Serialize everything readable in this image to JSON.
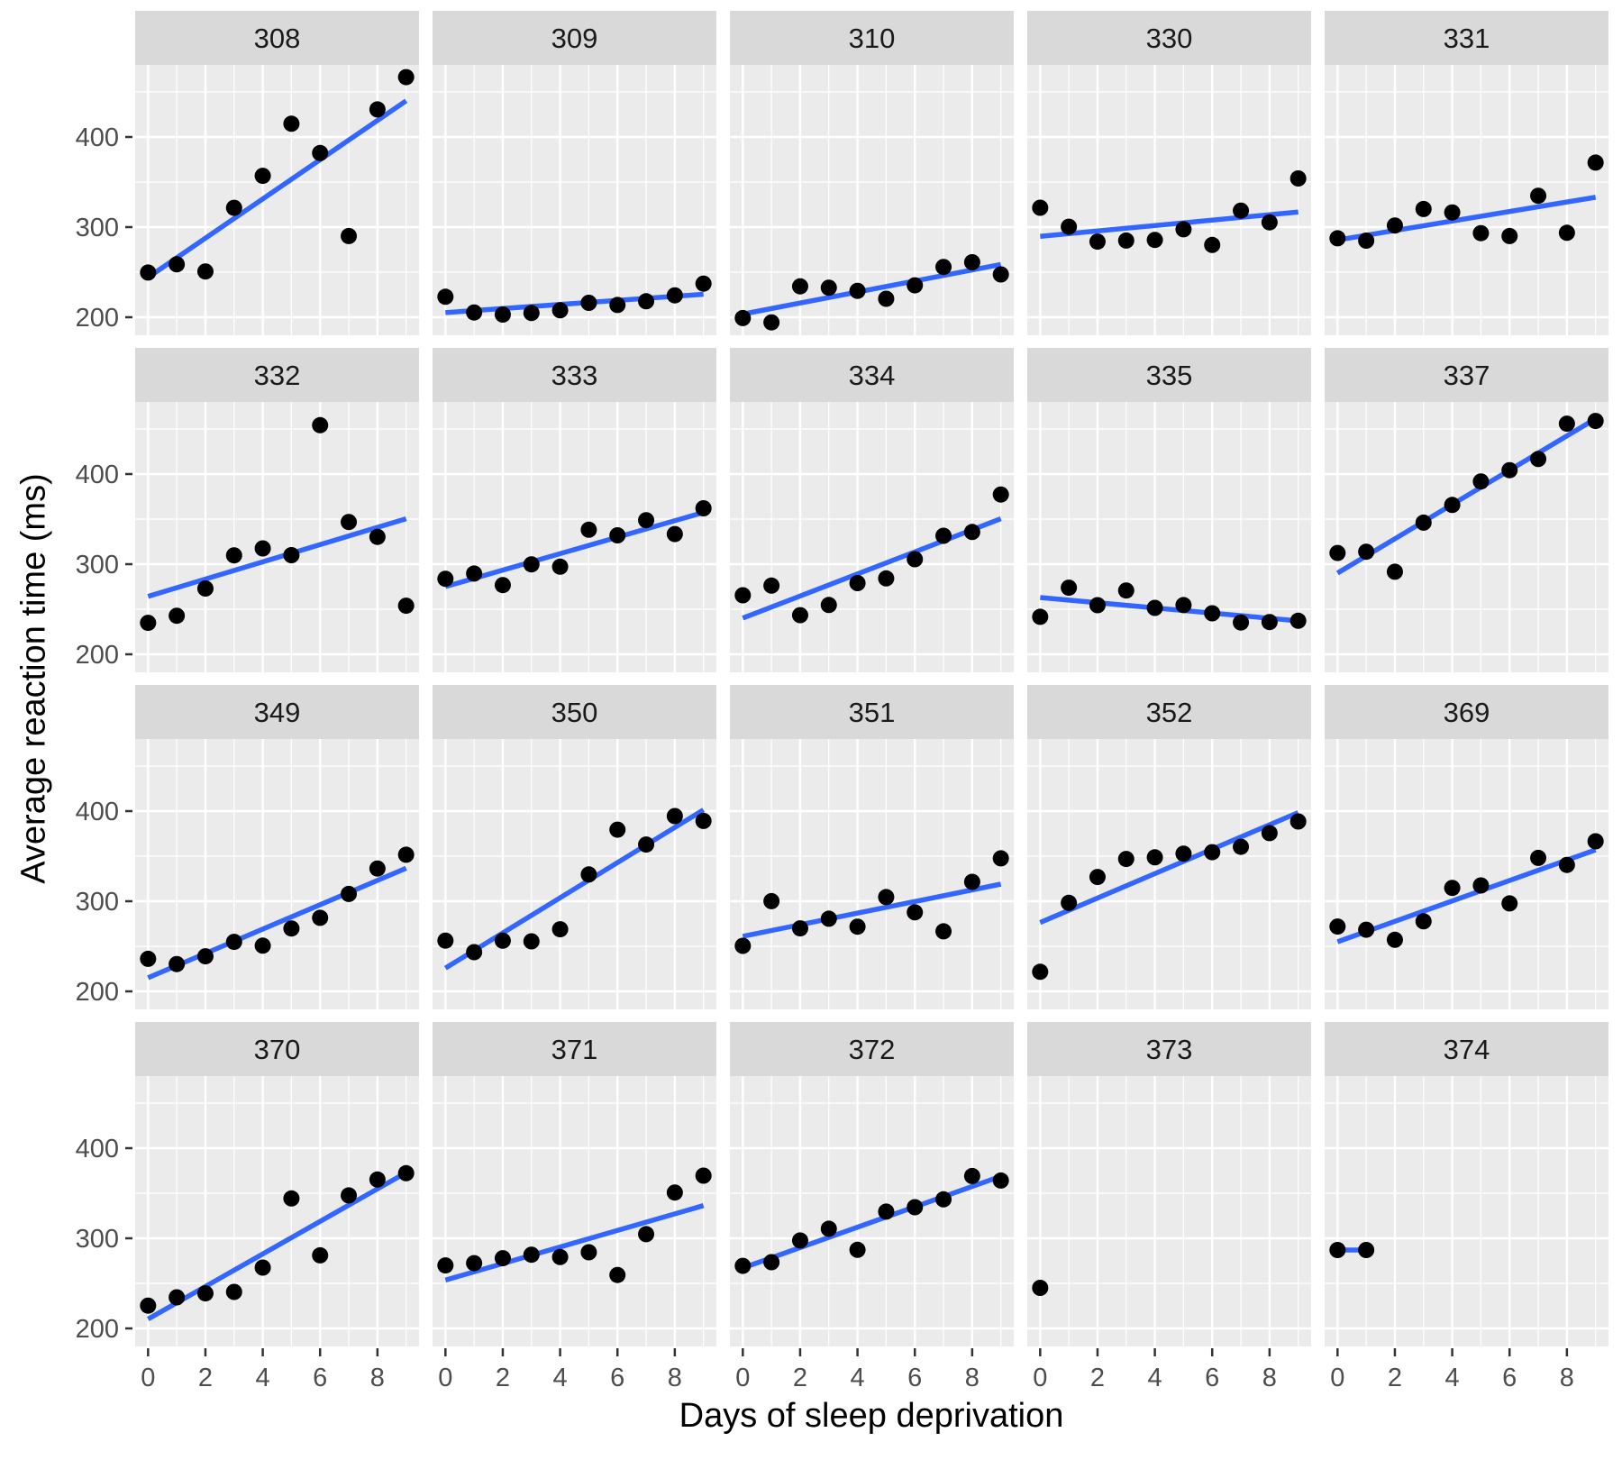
{
  "axes": {
    "x_label": "Days of sleep deprivation",
    "y_label": "Average reaction time (ms)",
    "x_ticks": [
      0,
      2,
      4,
      6,
      8
    ],
    "x_minor": [
      1,
      3,
      5,
      7,
      9
    ],
    "y_ticks": [
      200,
      300,
      400
    ],
    "y_minor": [
      250,
      350,
      450
    ],
    "x_range": [
      -0.45,
      9.45
    ],
    "y_range": [
      180,
      480
    ],
    "grid": "on",
    "legend": "none"
  },
  "style": {
    "panel_bg": "#EBEBEB",
    "grid_color": "#FFFFFF",
    "strip_bg": "#D9D9D9",
    "strip_text": "#1A1A1A",
    "axis_text": "#4D4D4D",
    "tick_color": "#333333",
    "point_color": "#000000",
    "line_color": "#3366FF"
  },
  "chart_data": {
    "type": "scatter",
    "title": "",
    "xlabel": "Days of sleep deprivation",
    "ylabel": "Average reaction time (ms)",
    "facet_layout": {
      "rows": 4,
      "cols": 5
    },
    "facets": [
      {
        "label": "308",
        "x": [
          0,
          1,
          2,
          3,
          4,
          5,
          6,
          7,
          8,
          9
        ],
        "y": [
          249.6,
          258.7,
          250.8,
          321.4,
          356.9,
          414.7,
          382.2,
          290.1,
          430.6,
          466.4
        ],
        "trend": {
          "x": [
            0,
            9
          ],
          "y": [
            244.2,
            440.1
          ]
        }
      },
      {
        "label": "309",
        "x": [
          0,
          1,
          2,
          3,
          4,
          5,
          6,
          7,
          8,
          9
        ],
        "y": [
          222.7,
          205.3,
          203.0,
          204.7,
          207.7,
          216.0,
          213.6,
          217.7,
          224.3,
          237.3
        ],
        "trend": {
          "x": [
            0,
            9
          ],
          "y": [
            205.1,
            225.5
          ]
        }
      },
      {
        "label": "310",
        "x": [
          0,
          1,
          2,
          3,
          4,
          5,
          6,
          7,
          8,
          9
        ],
        "y": [
          199.1,
          194.3,
          234.3,
          232.8,
          229.3,
          220.5,
          235.4,
          255.8,
          261.0,
          247.5
        ],
        "trend": {
          "x": [
            0,
            9
          ],
          "y": [
            203.5,
            258.6
          ]
        }
      },
      {
        "label": "330",
        "x": [
          0,
          1,
          2,
          3,
          4,
          5,
          6,
          7,
          8,
          9
        ],
        "y": [
          321.5,
          300.4,
          283.9,
          285.1,
          285.8,
          297.6,
          280.2,
          318.3,
          305.3,
          354.0
        ],
        "trend": {
          "x": [
            0,
            9
          ],
          "y": [
            289.7,
            316.8
          ]
        }
      },
      {
        "label": "331",
        "x": [
          0,
          1,
          2,
          3,
          4,
          5,
          6,
          7,
          8,
          9
        ],
        "y": [
          287.6,
          285.0,
          301.8,
          320.1,
          316.3,
          293.3,
          290.1,
          334.8,
          293.7,
          371.6
        ],
        "trend": {
          "x": [
            0,
            9
          ],
          "y": [
            285.7,
            333.1
          ]
        }
      },
      {
        "label": "332",
        "x": [
          0,
          1,
          2,
          3,
          4,
          5,
          6,
          7,
          8,
          9
        ],
        "y": [
          234.9,
          242.8,
          273.0,
          309.8,
          317.5,
          310.0,
          454.2,
          346.8,
          330.3,
          253.9
        ],
        "trend": {
          "x": [
            0,
            9
          ],
          "y": [
            264.3,
            350.4
          ]
        }
      },
      {
        "label": "333",
        "x": [
          0,
          1,
          2,
          3,
          4,
          5,
          6,
          7,
          8,
          9
        ],
        "y": [
          283.8,
          289.6,
          276.8,
          299.8,
          297.2,
          338.2,
          332.0,
          348.8,
          333.4,
          362.0
        ],
        "trend": {
          "x": [
            0,
            9
          ],
          "y": [
            275.1,
            357.4
          ]
        }
      },
      {
        "label": "334",
        "x": [
          0,
          1,
          2,
          3,
          4,
          5,
          6,
          7,
          8,
          9
        ],
        "y": [
          265.5,
          276.2,
          243.4,
          254.7,
          279.0,
          284.2,
          305.5,
          331.5,
          335.7,
          377.3
        ],
        "trend": {
          "x": [
            0,
            9
          ],
          "y": [
            240.2,
            350.4
          ]
        }
      },
      {
        "label": "335",
        "x": [
          0,
          1,
          2,
          3,
          4,
          5,
          6,
          7,
          8,
          9
        ],
        "y": [
          241.6,
          273.9,
          254.5,
          270.8,
          251.5,
          254.6,
          245.5,
          235.3,
          235.8,
          237.2
        ],
        "trend": {
          "x": [
            0,
            9
          ],
          "y": [
            263.0,
            237.1
          ]
        }
      },
      {
        "label": "337",
        "x": [
          0,
          1,
          2,
          3,
          4,
          5,
          6,
          7,
          8,
          9
        ],
        "y": [
          312.4,
          313.8,
          291.6,
          346.1,
          365.7,
          391.8,
          404.3,
          416.7,
          455.9,
          458.9
        ],
        "trend": {
          "x": [
            0,
            9
          ],
          "y": [
            290.1,
            461.4
          ]
        }
      },
      {
        "label": "349",
        "x": [
          0,
          1,
          2,
          3,
          4,
          5,
          6,
          7,
          8,
          9
        ],
        "y": [
          236.1,
          230.3,
          238.9,
          254.9,
          250.7,
          269.8,
          281.6,
          308.1,
          336.3,
          351.6
        ],
        "trend": {
          "x": [
            0,
            9
          ],
          "y": [
            215.1,
            336.6
          ]
        }
      },
      {
        "label": "350",
        "x": [
          0,
          1,
          2,
          3,
          4,
          5,
          6,
          7,
          8,
          9
        ],
        "y": [
          256.3,
          243.5,
          256.2,
          255.5,
          268.9,
          329.7,
          379.4,
          362.9,
          394.5,
          389.1
        ],
        "trend": {
          "x": [
            0,
            9
          ],
          "y": [
            225.8,
            401.4
          ]
        }
      },
      {
        "label": "351",
        "x": [
          0,
          1,
          2,
          3,
          4,
          5,
          6,
          7,
          8,
          9
        ],
        "y": [
          250.5,
          300.1,
          269.9,
          280.6,
          271.8,
          304.6,
          287.7,
          266.6,
          321.5,
          347.6
        ],
        "trend": {
          "x": [
            0,
            9
          ],
          "y": [
            261.1,
            319.0
          ]
        }
      },
      {
        "label": "352",
        "x": [
          0,
          1,
          2,
          3,
          4,
          5,
          6,
          7,
          8,
          9
        ],
        "y": [
          221.7,
          298.2,
          326.9,
          346.9,
          348.7,
          352.8,
          354.4,
          360.4,
          375.6,
          388.5
        ],
        "trend": {
          "x": [
            0,
            9
          ],
          "y": [
            276.4,
            398.4
          ]
        }
      },
      {
        "label": "369",
        "x": [
          0,
          1,
          2,
          3,
          4,
          5,
          6,
          7,
          8,
          9
        ],
        "y": [
          271.9,
          268.4,
          257.2,
          277.7,
          314.8,
          317.5,
          297.6,
          348.1,
          340.3,
          366.5
        ],
        "trend": {
          "x": [
            0,
            9
          ],
          "y": [
            255.0,
            357.0
          ]
        }
      },
      {
        "label": "370",
        "x": [
          0,
          1,
          2,
          3,
          4,
          5,
          6,
          7,
          8,
          9
        ],
        "y": [
          225.3,
          234.5,
          238.9,
          240.5,
          267.5,
          344.2,
          281.1,
          347.6,
          365.2,
          372.2
        ],
        "trend": {
          "x": [
            0,
            9
          ],
          "y": [
            210.4,
            372.9
          ]
        }
      },
      {
        "label": "371",
        "x": [
          0,
          1,
          2,
          3,
          4,
          5,
          6,
          7,
          8,
          9
        ],
        "y": [
          269.9,
          272.4,
          277.9,
          281.8,
          279.2,
          284.5,
          259.3,
          304.6,
          350.8,
          369.5
        ],
        "trend": {
          "x": [
            0,
            9
          ],
          "y": [
            253.6,
            336.3
          ]
        }
      },
      {
        "label": "372",
        "x": [
          0,
          1,
          2,
          3,
          4,
          5,
          6,
          7,
          8,
          9
        ],
        "y": [
          269.4,
          273.5,
          297.6,
          310.6,
          287.2,
          329.6,
          334.5,
          343.2,
          369.1,
          364.1
        ],
        "trend": {
          "x": [
            0,
            9
          ],
          "y": [
            267.1,
            368.8
          ]
        }
      },
      {
        "label": "373",
        "x": [
          0
        ],
        "y": [
          245.0
        ],
        "trend": null
      },
      {
        "label": "374",
        "x": [
          0,
          1
        ],
        "y": [
          287.0,
          287.0
        ],
        "trend": {
          "x": [
            0,
            1
          ],
          "y": [
            287.0,
            287.0
          ]
        }
      }
    ]
  }
}
